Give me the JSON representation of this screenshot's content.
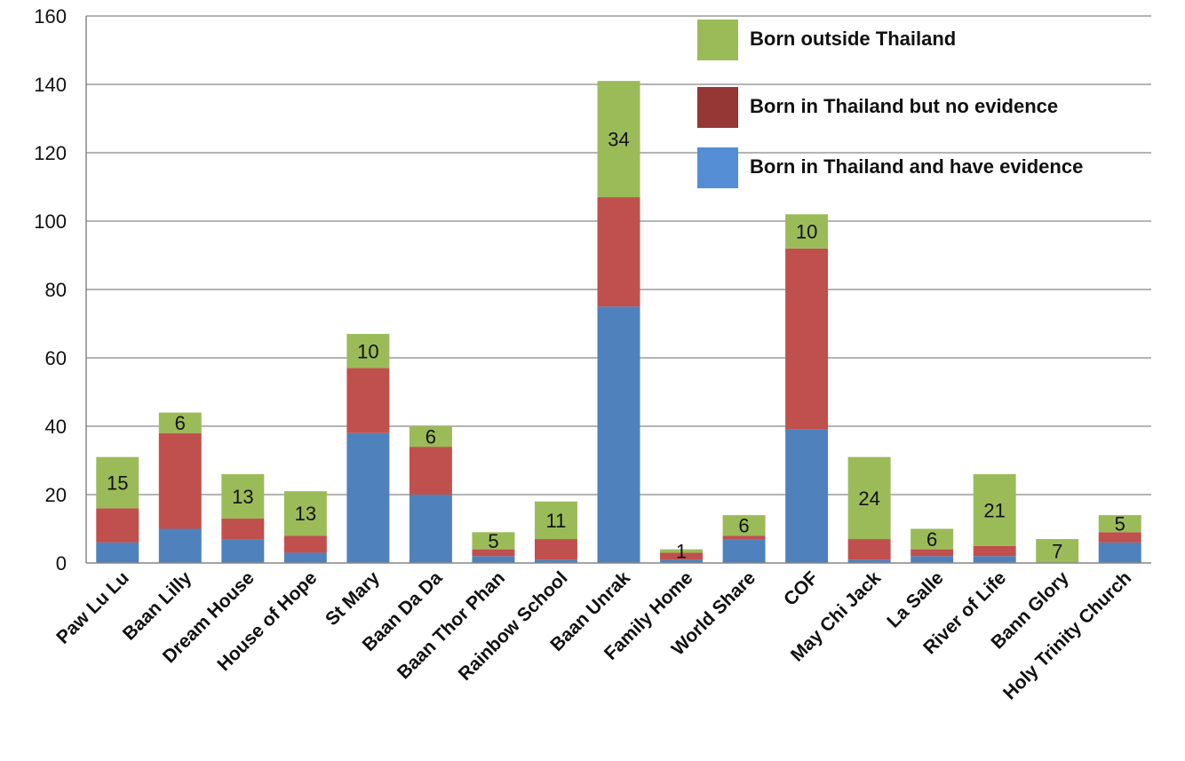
{
  "chart_data": {
    "type": "bar",
    "stacked": true,
    "title": "",
    "xlabel": "",
    "ylabel": "",
    "ylim": [
      0,
      160
    ],
    "yticks": [
      0,
      20,
      40,
      60,
      80,
      100,
      120,
      140,
      160
    ],
    "grid": "horizontal",
    "legend_position": "top-right",
    "categories": [
      "Paw Lu Lu",
      "Baan Lilly",
      "Dream House",
      "House of Hope",
      "St Mary",
      "Baan Da Da",
      "Baan Thor Phan",
      "Rainbow School",
      "Baan Unrak",
      "Family Home",
      "World Share",
      "COF",
      "May Chi Jack",
      "La Salle",
      "River of Life",
      "Bann Glory",
      "Holy Trinity Church"
    ],
    "series": [
      {
        "name": "Born in Thailand and have evidence",
        "color": "#4f81bd",
        "values": [
          6,
          10,
          7,
          3,
          38,
          20,
          2,
          1,
          75,
          1,
          7,
          39,
          1,
          2,
          2,
          0,
          6
        ]
      },
      {
        "name": "Born in Thailand but no evidence",
        "color": "#c0504d",
        "values": [
          10,
          28,
          6,
          5,
          19,
          14,
          2,
          6,
          32,
          2,
          1,
          53,
          6,
          2,
          3,
          0,
          3
        ]
      },
      {
        "name": "Born outside Thailand",
        "color": "#9bbb59",
        "values": [
          15,
          6,
          13,
          13,
          10,
          6,
          5,
          11,
          34,
          1,
          6,
          10,
          24,
          6,
          21,
          7,
          5
        ]
      }
    ],
    "data_labels_series": "Born outside Thailand",
    "legend": [
      {
        "label": "Born outside Thailand",
        "color": "#9bbb59"
      },
      {
        "label": "Born in Thailand but no evidence",
        "color": "#953735"
      },
      {
        "label": "Born in Thailand and have evidence",
        "color": "#558ed5"
      }
    ]
  }
}
